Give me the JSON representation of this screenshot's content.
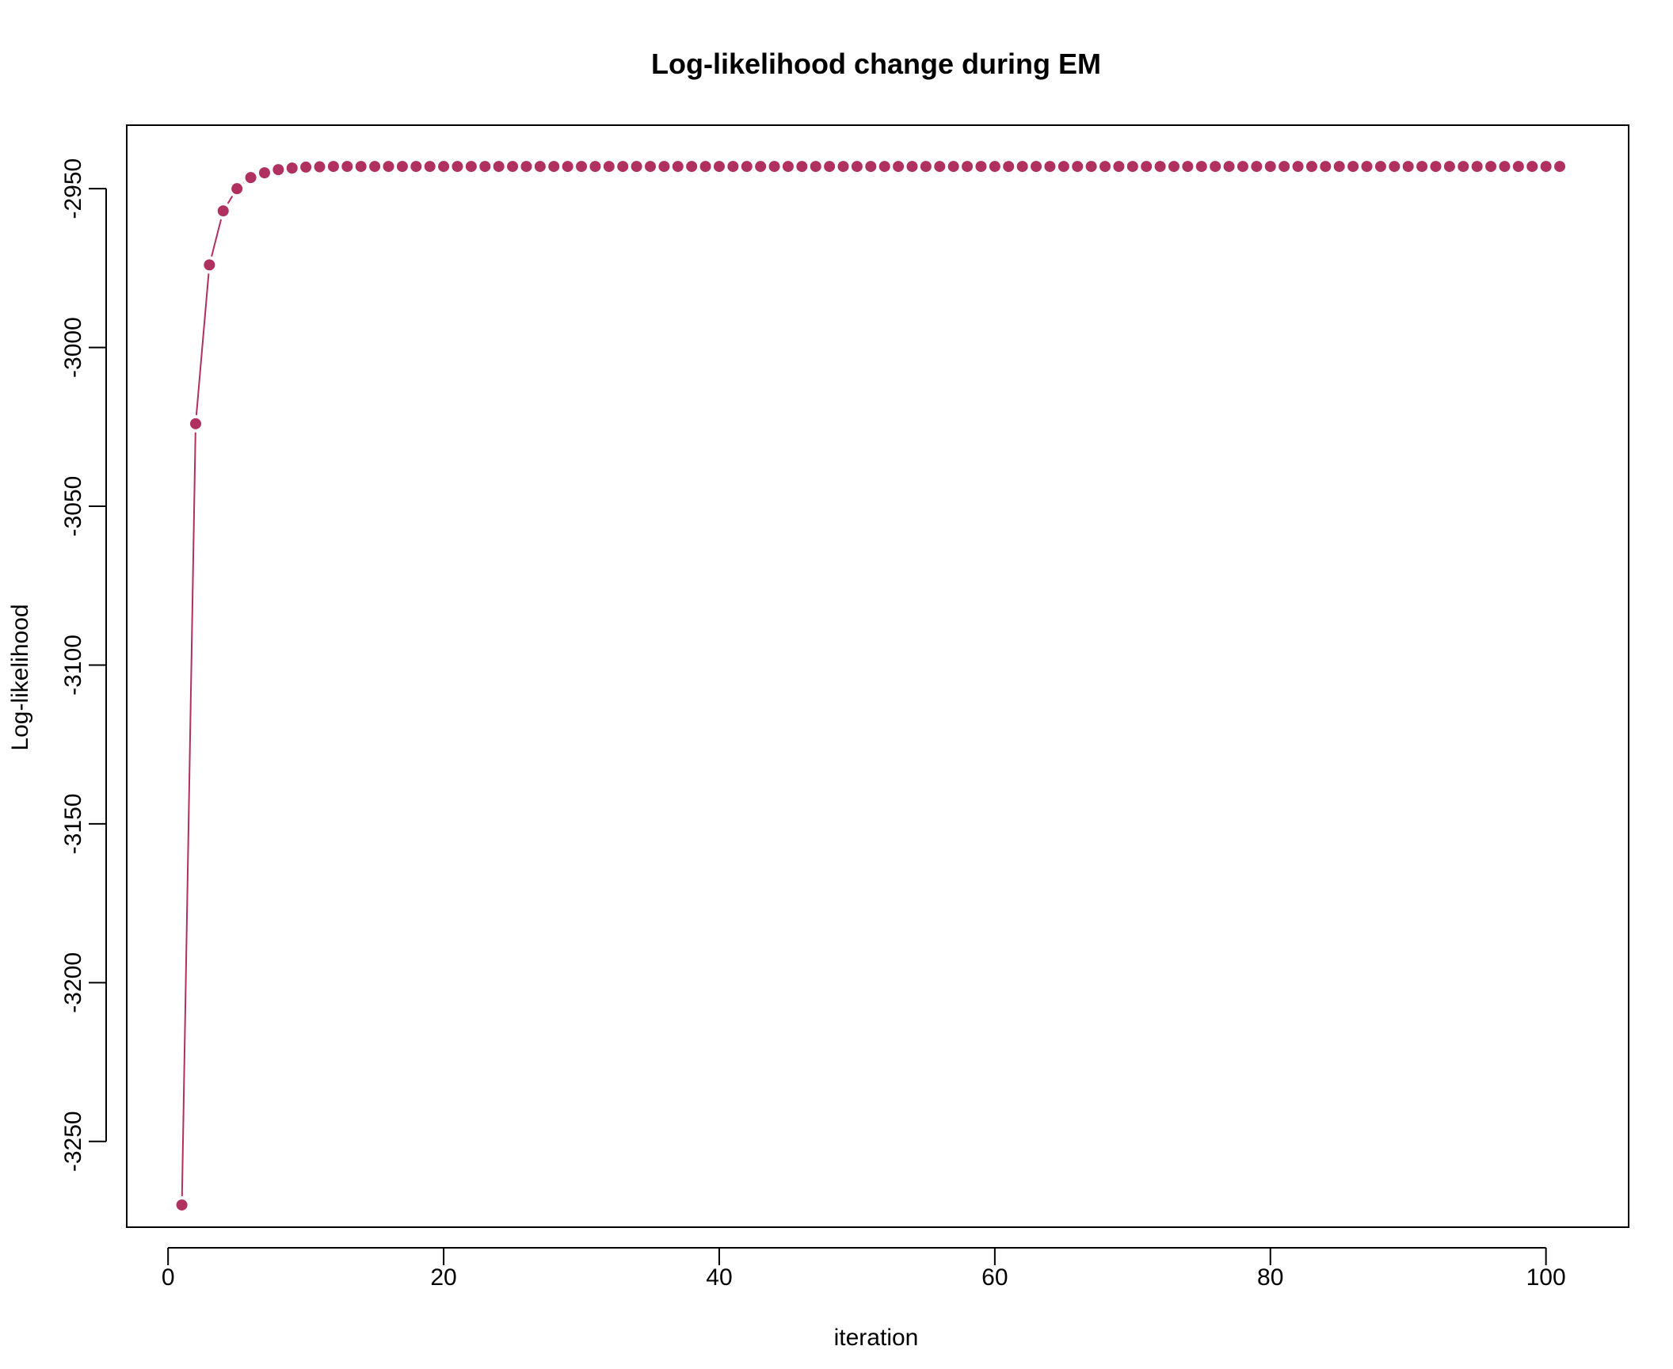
{
  "chart_data": {
    "type": "line",
    "title": "Log-likelihood change during EM",
    "xlabel": "iteration",
    "ylabel": "Log-likelihood",
    "xlim": [
      -3,
      106
    ],
    "ylim": [
      -3277,
      -2930
    ],
    "x_ticks": [
      0,
      20,
      40,
      60,
      80,
      100
    ],
    "y_ticks": [
      -3250,
      -3200,
      -3150,
      -3100,
      -3050,
      -3000,
      -2950
    ],
    "grid": false,
    "legend": "none",
    "style": "line with filled points",
    "color": "#B03060",
    "series": [
      {
        "x": [
          1,
          2,
          3,
          4,
          5,
          6,
          7,
          8,
          9,
          10,
          11,
          12,
          13,
          14,
          15,
          16,
          17,
          18,
          19,
          20,
          21,
          22,
          23,
          24,
          25,
          26,
          27,
          28,
          29,
          30,
          31,
          32,
          33,
          34,
          35,
          36,
          37,
          38,
          39,
          40,
          41,
          42,
          43,
          44,
          45,
          46,
          47,
          48,
          49,
          50,
          51,
          52,
          53,
          54,
          55,
          56,
          57,
          58,
          59,
          60,
          61,
          62,
          63,
          64,
          65,
          66,
          67,
          68,
          69,
          70,
          71,
          72,
          73,
          74,
          75,
          76,
          77,
          78,
          79,
          80,
          81,
          82,
          83,
          84,
          85,
          86,
          87,
          88,
          89,
          90,
          91,
          92,
          93,
          94,
          95,
          96,
          97,
          98,
          99,
          100,
          101
        ],
        "y": [
          -3270,
          -3024,
          -2974,
          -2957,
          -2950,
          -2946.5,
          -2945,
          -2944,
          -2943.5,
          -2943.2,
          -2943.1,
          -2943,
          -2943,
          -2943,
          -2943,
          -2943,
          -2943,
          -2943,
          -2943,
          -2943,
          -2943,
          -2943,
          -2943,
          -2943,
          -2943,
          -2943,
          -2943,
          -2943,
          -2943,
          -2943,
          -2943,
          -2943,
          -2943,
          -2943,
          -2943,
          -2943,
          -2943,
          -2943,
          -2943,
          -2943,
          -2943,
          -2943,
          -2943,
          -2943,
          -2943,
          -2943,
          -2943,
          -2943,
          -2943,
          -2943,
          -2943,
          -2943,
          -2943,
          -2943,
          -2943,
          -2943,
          -2943,
          -2943,
          -2943,
          -2943,
          -2943,
          -2943,
          -2943,
          -2943,
          -2943,
          -2943,
          -2943,
          -2943,
          -2943,
          -2943,
          -2943,
          -2943,
          -2943,
          -2943,
          -2943,
          -2943,
          -2943,
          -2943,
          -2943,
          -2943,
          -2943,
          -2943,
          -2943,
          -2943,
          -2943,
          -2943,
          -2943,
          -2943,
          -2943,
          -2943,
          -2943,
          -2943,
          -2943,
          -2943,
          -2943,
          -2943,
          -2943,
          -2943,
          -2943,
          -2943,
          -2943
        ]
      }
    ]
  }
}
